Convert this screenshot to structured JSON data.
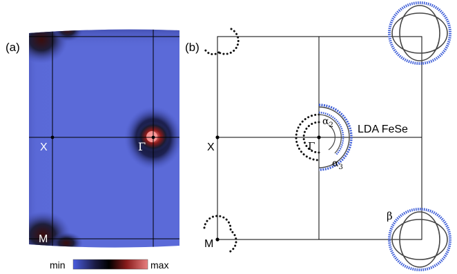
{
  "panel_a": {
    "label": "(a)",
    "point_labels": {
      "x": "X",
      "gamma": "Γ",
      "m": "M"
    },
    "colorbar": {
      "min_label": "min",
      "max_label": "max",
      "colors": [
        "#4a5de0",
        "#1a1a40",
        "#000000",
        "#8a1c1c",
        "#e88080"
      ]
    },
    "background_color": "#5b6ad8"
  },
  "panel_b": {
    "label": "(b)",
    "point_labels": {
      "x": "X",
      "gamma": "Γ",
      "m": "M"
    },
    "band_labels": {
      "alpha2_base": "α",
      "alpha2_sub": "2",
      "alpha3_base": "α",
      "alpha3_sub": "3",
      "beta": "β"
    },
    "annotation": "LDA FeSe",
    "colors": {
      "calc_line": "#444444",
      "measured": "#3f5fd8",
      "dotted": "#111111"
    }
  }
}
